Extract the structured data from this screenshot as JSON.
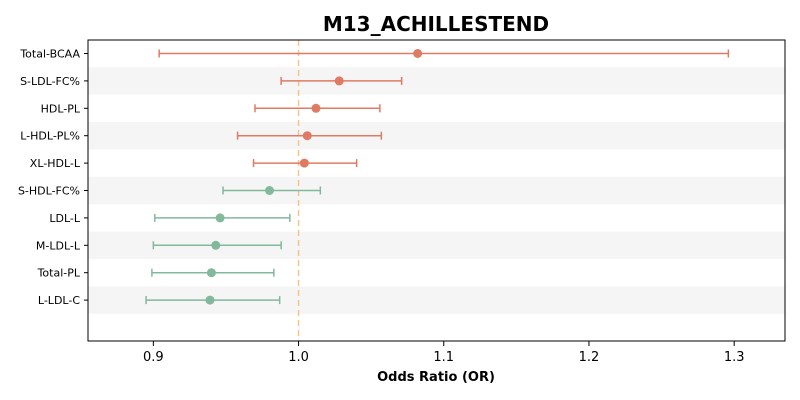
{
  "chart_data": {
    "type": "forest",
    "title": "M13_ACHILLESTEND",
    "xlabel": "Odds Ratio (OR)",
    "xlim": [
      0.855,
      1.335
    ],
    "xticks": [
      0.9,
      1.0,
      1.1,
      1.2,
      1.3
    ],
    "xtick_labels": [
      "0.9",
      "1.0",
      "1.1",
      "1.2",
      "1.3"
    ],
    "reference_line": 1.0,
    "colors": {
      "positive": "#e07b63",
      "negative": "#82b89c",
      "reference": "#f5c48a",
      "band": "#f5f5f5",
      "axis": "#000000"
    },
    "rows": [
      {
        "label": "Total-BCAA",
        "or": 1.082,
        "lower": 0.904,
        "upper": 1.296,
        "group": "positive"
      },
      {
        "label": "S-LDL-FC%",
        "or": 1.028,
        "lower": 0.988,
        "upper": 1.071,
        "group": "positive"
      },
      {
        "label": "HDL-PL",
        "or": 1.012,
        "lower": 0.97,
        "upper": 1.056,
        "group": "positive"
      },
      {
        "label": "L-HDL-PL%",
        "or": 1.006,
        "lower": 0.958,
        "upper": 1.057,
        "group": "positive"
      },
      {
        "label": "XL-HDL-L",
        "or": 1.004,
        "lower": 0.969,
        "upper": 1.04,
        "group": "positive"
      },
      {
        "label": "S-HDL-FC%",
        "or": 0.98,
        "lower": 0.948,
        "upper": 1.015,
        "group": "negative"
      },
      {
        "label": "LDL-L",
        "or": 0.946,
        "lower": 0.901,
        "upper": 0.994,
        "group": "negative"
      },
      {
        "label": "M-LDL-L",
        "or": 0.943,
        "lower": 0.9,
        "upper": 0.988,
        "group": "negative"
      },
      {
        "label": "Total-PL",
        "or": 0.94,
        "lower": 0.899,
        "upper": 0.983,
        "group": "negative"
      },
      {
        "label": "L-LDL-C",
        "or": 0.939,
        "lower": 0.895,
        "upper": 0.987,
        "group": "negative"
      }
    ]
  }
}
